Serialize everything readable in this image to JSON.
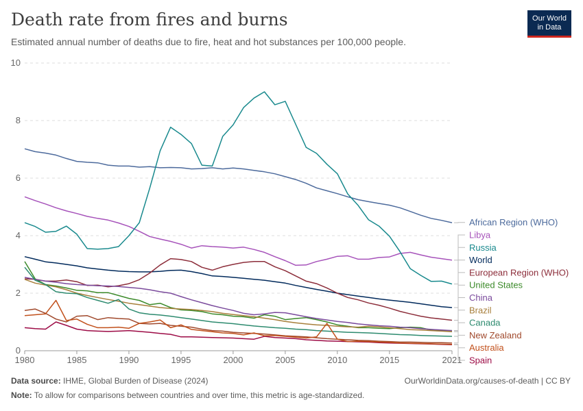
{
  "header": {
    "title": "Death rate from fires and burns",
    "subtitle": "Estimated annual number of deaths due to fire, heat and hot substances per 100,000 people."
  },
  "logo": {
    "line1": "Our World",
    "line2": "in Data"
  },
  "footer": {
    "source_label": "Data source:",
    "source_text": "IHME, Global Burden of Disease (2024)",
    "url": "OurWorldinData.org/causes-of-death | CC BY",
    "note_label": "Note:",
    "note_text": "To allow for comparisons between countries and over time, this metric is age-standardized."
  },
  "chart_data": {
    "type": "line",
    "title": "Death rate from fires and burns",
    "xlabel": "",
    "ylabel": "",
    "xlim": [
      1980,
      2021
    ],
    "ylim": [
      0,
      10
    ],
    "x_ticks": [
      1980,
      1985,
      1990,
      1995,
      2000,
      2005,
      2010,
      2015,
      2021
    ],
    "y_ticks": [
      0,
      2,
      4,
      6,
      8,
      10
    ],
    "grid": true,
    "legend": "right-labels",
    "x": [
      1980,
      1981,
      1982,
      1983,
      1984,
      1985,
      1986,
      1987,
      1988,
      1989,
      1990,
      1991,
      1992,
      1993,
      1994,
      1995,
      1996,
      1997,
      1998,
      1999,
      2000,
      2001,
      2002,
      2003,
      2004,
      2005,
      2006,
      2007,
      2008,
      2009,
      2010,
      2011,
      2012,
      2013,
      2014,
      2015,
      2016,
      2017,
      2018,
      2019,
      2020,
      2021
    ],
    "series": [
      {
        "name": "African Region (WHO)",
        "color": "#4c6a9c",
        "values": [
          7.02,
          6.92,
          6.87,
          6.8,
          6.68,
          6.58,
          6.55,
          6.53,
          6.45,
          6.42,
          6.42,
          6.38,
          6.4,
          6.36,
          6.37,
          6.36,
          6.32,
          6.33,
          6.36,
          6.32,
          6.35,
          6.32,
          6.27,
          6.22,
          6.15,
          6.05,
          5.95,
          5.82,
          5.66,
          5.56,
          5.46,
          5.35,
          5.25,
          5.18,
          5.12,
          5.06,
          4.97,
          4.84,
          4.71,
          4.6,
          4.53,
          4.45
        ]
      },
      {
        "name": "Libya",
        "color": "#a652ba",
        "values": [
          5.35,
          5.22,
          5.1,
          4.97,
          4.86,
          4.77,
          4.67,
          4.6,
          4.54,
          4.44,
          4.32,
          4.15,
          3.97,
          3.88,
          3.8,
          3.7,
          3.57,
          3.65,
          3.62,
          3.6,
          3.57,
          3.6,
          3.52,
          3.42,
          3.27,
          3.13,
          2.97,
          2.98,
          3.1,
          3.18,
          3.28,
          3.3,
          3.18,
          3.18,
          3.24,
          3.26,
          3.38,
          3.42,
          3.33,
          3.25,
          3.2,
          3.15
        ]
      },
      {
        "name": "Russia",
        "color": "#18898d",
        "values": [
          4.45,
          4.32,
          4.12,
          4.15,
          4.33,
          4.05,
          3.55,
          3.53,
          3.55,
          3.62,
          4.0,
          4.45,
          5.65,
          6.95,
          7.77,
          7.52,
          7.2,
          6.45,
          6.42,
          7.45,
          7.85,
          8.45,
          8.78,
          9.0,
          8.55,
          8.67,
          7.87,
          7.07,
          6.86,
          6.48,
          6.15,
          5.45,
          5.05,
          4.55,
          4.33,
          3.98,
          3.45,
          2.85,
          2.62,
          2.41,
          2.42,
          2.32
        ]
      },
      {
        "name": "World",
        "color": "#00295b",
        "values": [
          3.27,
          3.18,
          3.09,
          3.05,
          3.0,
          2.95,
          2.88,
          2.84,
          2.8,
          2.77,
          2.75,
          2.74,
          2.74,
          2.76,
          2.79,
          2.8,
          2.75,
          2.68,
          2.6,
          2.58,
          2.55,
          2.52,
          2.48,
          2.45,
          2.4,
          2.35,
          2.27,
          2.2,
          2.13,
          2.07,
          2.0,
          1.95,
          1.9,
          1.85,
          1.8,
          1.76,
          1.72,
          1.68,
          1.63,
          1.58,
          1.53,
          1.5
        ]
      },
      {
        "name": "European Region (WHO)",
        "color": "#8c2d3a",
        "values": [
          2.5,
          2.48,
          2.42,
          2.42,
          2.46,
          2.4,
          2.27,
          2.28,
          2.22,
          2.26,
          2.33,
          2.47,
          2.7,
          2.98,
          3.2,
          3.17,
          3.1,
          2.9,
          2.8,
          2.92,
          3.0,
          3.07,
          3.1,
          3.1,
          2.92,
          2.78,
          2.6,
          2.42,
          2.33,
          2.18,
          2.0,
          1.85,
          1.77,
          1.66,
          1.58,
          1.48,
          1.37,
          1.28,
          1.2,
          1.14,
          1.1,
          1.06
        ]
      },
      {
        "name": "United States",
        "color": "#3c8a2a",
        "values": [
          3.1,
          2.5,
          2.3,
          2.25,
          2.18,
          2.1,
          2.08,
          2.02,
          2.02,
          1.92,
          1.82,
          1.75,
          1.6,
          1.65,
          1.5,
          1.42,
          1.4,
          1.36,
          1.28,
          1.25,
          1.2,
          1.18,
          1.13,
          1.25,
          1.2,
          1.08,
          1.12,
          1.15,
          1.08,
          1.0,
          0.9,
          0.85,
          0.8,
          0.8,
          0.78,
          0.77,
          0.8,
          0.82,
          0.8,
          0.72,
          0.7,
          0.7
        ]
      },
      {
        "name": "China",
        "color": "#7a4a9c",
        "values": [
          2.55,
          2.48,
          2.42,
          2.38,
          2.33,
          2.3,
          2.28,
          2.26,
          2.25,
          2.23,
          2.2,
          2.17,
          2.12,
          2.05,
          2.0,
          1.88,
          1.77,
          1.67,
          1.57,
          1.48,
          1.4,
          1.3,
          1.25,
          1.28,
          1.33,
          1.32,
          1.25,
          1.18,
          1.12,
          1.07,
          1.02,
          0.98,
          0.93,
          0.9,
          0.87,
          0.85,
          0.82,
          0.8,
          0.77,
          0.74,
          0.72,
          0.7
        ]
      },
      {
        "name": "Brazil",
        "color": "#a77e3a",
        "values": [
          2.48,
          2.35,
          2.28,
          2.22,
          2.12,
          2.0,
          1.92,
          1.85,
          1.78,
          1.72,
          1.65,
          1.6,
          1.55,
          1.5,
          1.47,
          1.45,
          1.43,
          1.4,
          1.36,
          1.3,
          1.26,
          1.22,
          1.18,
          1.13,
          1.08,
          1.02,
          0.97,
          0.93,
          0.9,
          0.88,
          0.85,
          0.83,
          0.82,
          0.85,
          0.83,
          0.8,
          0.77,
          0.73,
          0.72,
          0.7,
          0.68,
          0.66
        ]
      },
      {
        "name": "Canada",
        "color": "#2c8a6e",
        "values": [
          2.9,
          2.45,
          2.3,
          2.05,
          2.0,
          1.98,
          1.85,
          1.75,
          1.65,
          1.78,
          1.45,
          1.32,
          1.27,
          1.24,
          1.2,
          1.15,
          1.1,
          1.05,
          1.0,
          0.97,
          0.94,
          0.9,
          0.86,
          0.83,
          0.8,
          0.78,
          0.75,
          0.73,
          0.7,
          0.68,
          0.66,
          0.64,
          0.63,
          0.62,
          0.6,
          0.58,
          0.56,
          0.55,
          0.53,
          0.52,
          0.51,
          0.5
        ]
      },
      {
        "name": "New Zealand",
        "color": "#a0492c",
        "values": [
          1.4,
          1.45,
          1.3,
          1.1,
          1.0,
          1.2,
          1.22,
          1.08,
          1.15,
          1.12,
          1.1,
          0.95,
          0.93,
          0.95,
          0.88,
          0.85,
          0.82,
          0.75,
          0.7,
          0.68,
          0.64,
          0.62,
          0.6,
          0.58,
          0.55,
          0.52,
          0.5,
          0.48,
          0.45,
          0.42,
          0.4,
          0.38,
          0.36,
          0.35,
          0.33,
          0.32,
          0.3,
          0.3,
          0.29,
          0.28,
          0.28,
          0.27
        ]
      },
      {
        "name": "Spain",
        "color": "#9c0a45",
        "values": [
          0.8,
          0.77,
          0.75,
          1.0,
          0.88,
          0.75,
          0.7,
          0.68,
          0.67,
          0.68,
          0.7,
          0.67,
          0.64,
          0.6,
          0.57,
          0.48,
          0.48,
          0.47,
          0.46,
          0.45,
          0.44,
          0.42,
          0.4,
          0.5,
          0.46,
          0.44,
          0.42,
          0.38,
          0.36,
          0.34,
          0.33,
          0.32,
          0.31,
          0.3,
          0.28,
          0.27,
          0.26,
          0.25,
          0.24,
          0.23,
          0.22,
          0.21
        ]
      },
      {
        "name": "Australia",
        "color": "#c1501b",
        "values": [
          1.22,
          1.25,
          1.28,
          1.75,
          1.05,
          1.1,
          0.92,
          0.8,
          0.8,
          0.82,
          0.78,
          0.95,
          1.0,
          1.07,
          0.8,
          0.9,
          0.74,
          0.7,
          0.66,
          0.62,
          0.6,
          0.55,
          0.62,
          0.52,
          0.53,
          0.5,
          0.47,
          0.44,
          0.48,
          0.95,
          0.4,
          0.32,
          0.33,
          0.32,
          0.3,
          0.29,
          0.27,
          0.26,
          0.25,
          0.24,
          0.23,
          0.22
        ]
      }
    ]
  }
}
